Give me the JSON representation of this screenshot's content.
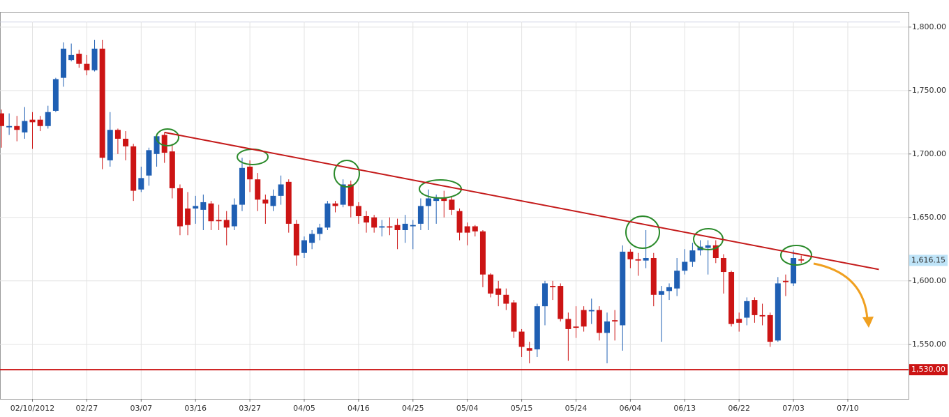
{
  "chart_data": {
    "type": "candlestick",
    "categories": [
      null,
      null,
      null,
      null,
      "02/10/2012",
      null,
      null,
      null,
      null,
      null,
      null,
      "02/27",
      null,
      null,
      null,
      null,
      null,
      null,
      "03/07",
      null,
      null,
      null,
      null,
      null,
      null,
      "03/16",
      null,
      null,
      null,
      null,
      null,
      null,
      "03/27",
      null,
      null,
      null,
      null,
      null,
      null,
      "04/05",
      null,
      null,
      null,
      null,
      null,
      null,
      "04/16",
      null,
      null,
      null,
      null,
      null,
      null,
      "04/25",
      null,
      null,
      null,
      null,
      null,
      null,
      "05/04",
      null,
      null,
      null,
      null,
      null,
      null,
      "05/15",
      null,
      null,
      null,
      null,
      null,
      null,
      "05/24",
      null,
      null,
      null,
      null,
      null,
      null,
      "06/04",
      null,
      null,
      null,
      null,
      null,
      null,
      "06/13",
      null,
      null,
      null,
      null,
      null,
      null,
      "06/22",
      null,
      null,
      null,
      null,
      null,
      null,
      "07/03",
      null,
      null,
      null,
      null,
      null,
      null,
      "07/10",
      null,
      null,
      null,
      null,
      null,
      null,
      null
    ],
    "open": [
      1732,
      1721,
      1722,
      1717,
      1727,
      1727,
      1722,
      1734,
      1760,
      1774,
      1779,
      1771,
      1766,
      1783,
      1695,
      1719,
      1712,
      1706,
      1672,
      1683,
      1700,
      1715,
      1702,
      1673,
      1657,
      1657,
      1656,
      1661,
      1648,
      1648,
      1643,
      1660,
      1690,
      1680,
      1664,
      1659,
      1667,
      1678,
      1645,
      1622,
      1630,
      1637,
      1642,
      1661,
      1660,
      1676,
      1659,
      1651,
      1650,
      1642,
      1643,
      1644,
      1640,
      1643,
      1645,
      1659,
      1663,
      1665,
      1664,
      1655,
      1643,
      1643,
      1639,
      1605,
      1594,
      1589,
      1583,
      1560,
      1547,
      1546,
      1580,
      1596,
      1596,
      1570,
      1564,
      1577,
      1576,
      1577,
      1559,
      1569,
      1565,
      1623,
      1617,
      1616,
      1618,
      1589,
      1592,
      1594,
      1608,
      1615,
      1624,
      1626,
      1628,
      1618,
      1607,
      1570,
      1571,
      1585,
      1573,
      1573,
      1553,
      1600,
      1598,
      1617,
      null,
      null,
      null,
      null,
      null,
      null,
      null,
      null,
      null,
      null,
      null,
      null,
      null
    ],
    "high": [
      1735,
      1732,
      1730,
      1737,
      1733,
      1730,
      1738,
      1760,
      1788,
      1787,
      1782,
      1778,
      1790,
      1790,
      1733,
      1720,
      1718,
      1708,
      1690,
      1705,
      1716,
      1717,
      1708,
      1676,
      1670,
      1667,
      1668,
      1663,
      1660,
      1655,
      1665,
      1697,
      1695,
      1685,
      1668,
      1672,
      1683,
      1680,
      1648,
      1635,
      1640,
      1645,
      1663,
      1663,
      1680,
      1679,
      1662,
      1655,
      1652,
      1648,
      1650,
      1649,
      1652,
      1648,
      1665,
      1672,
      1668,
      1671,
      1666,
      1657,
      1646,
      1644,
      1640,
      1606,
      1600,
      1594,
      1585,
      1562,
      1552,
      1582,
      1600,
      1600,
      1598,
      1575,
      1580,
      1580,
      1586,
      1580,
      1575,
      1577,
      1628,
      1625,
      1622,
      1640,
      1622,
      1596,
      1598,
      1618,
      1625,
      1630,
      1632,
      1632,
      1632,
      1621,
      1608,
      1575,
      1587,
      1587,
      1582,
      1575,
      1603,
      1605,
      1624,
      1620,
      null,
      null,
      null,
      null,
      null,
      null,
      null,
      null,
      null,
      null,
      null,
      null,
      null
    ],
    "low": [
      1705,
      1715,
      1710,
      1712,
      1704,
      1718,
      1720,
      1733,
      1753,
      1773,
      1768,
      1762,
      1765,
      1688,
      1690,
      1700,
      1695,
      1663,
      1670,
      1675,
      1690,
      1693,
      1665,
      1636,
      1636,
      1645,
      1640,
      1640,
      1640,
      1628,
      1640,
      1655,
      1670,
      1655,
      1645,
      1655,
      1660,
      1638,
      1612,
      1618,
      1625,
      1632,
      1640,
      1654,
      1658,
      1650,
      1645,
      1638,
      1638,
      1635,
      1636,
      1625,
      1630,
      1625,
      1640,
      1640,
      1645,
      1650,
      1652,
      1632,
      1628,
      1635,
      1595,
      1587,
      1580,
      1577,
      1555,
      1540,
      1535,
      1540,
      1565,
      1585,
      1568,
      1537,
      1555,
      1560,
      1566,
      1553,
      1535,
      1553,
      1545,
      1610,
      1604,
      1610,
      1580,
      1552,
      1585,
      1588,
      1605,
      1611,
      1620,
      1605,
      1614,
      1590,
      1564,
      1560,
      1565,
      1567,
      1565,
      1548,
      1552,
      1588,
      1596,
      1614,
      null,
      null,
      null,
      null,
      null,
      null,
      null,
      null,
      null,
      null,
      null,
      null,
      null
    ],
    "close": [
      1722,
      1722,
      1719,
      1726,
      1725,
      1722,
      1733,
      1759,
      1783,
      1778,
      1771,
      1766,
      1783,
      1697,
      1719,
      1712,
      1706,
      1671,
      1681,
      1703,
      1714,
      1701,
      1673,
      1643,
      1644,
      1659,
      1662,
      1647,
      1647,
      1642,
      1660,
      1689,
      1680,
      1664,
      1661,
      1667,
      1676,
      1645,
      1620,
      1632,
      1637,
      1642,
      1661,
      1659,
      1676,
      1659,
      1651,
      1646,
      1642,
      1643,
      1642,
      1640,
      1645,
      1644,
      1659,
      1665,
      1665,
      1663,
      1656,
      1638,
      1638,
      1639,
      1605,
      1590,
      1589,
      1582,
      1560,
      1548,
      1545,
      1580,
      1598,
      1595,
      1570,
      1562,
      1563,
      1564,
      1577,
      1559,
      1568,
      1568,
      1623,
      1617,
      1616,
      1618,
      1589,
      1592,
      1595,
      1608,
      1615,
      1624,
      1627,
      1628,
      1618,
      1607,
      1566,
      1567,
      1584,
      1573,
      1572,
      1552,
      1598,
      1599,
      1618,
      1616,
      null,
      null,
      null,
      null,
      null,
      null,
      null,
      null,
      null,
      null,
      null,
      null,
      null
    ],
    "up_color": "#1f5fb3",
    "down_color": "#cc1414",
    "ylim": [
      1507,
      1812
    ],
    "yticks": [
      {
        "value": 1550,
        "label": "1,550.00"
      },
      {
        "value": 1600,
        "label": "1,600.00"
      },
      {
        "value": 1650,
        "label": "1,650.00"
      },
      {
        "value": 1700,
        "label": "1,700.00"
      },
      {
        "value": 1750,
        "label": "1,750.00"
      },
      {
        "value": 1800,
        "label": "1,800.00"
      }
    ],
    "grid": true,
    "last_price": {
      "value": 1616.15,
      "label": "1,616.15"
    },
    "support": {
      "value": 1530,
      "label": "1,530.00",
      "color": "#cc1414"
    },
    "trend_line": {
      "x": [
        21,
        113
      ],
      "y": [
        1717,
        1609
      ],
      "color": "#c41a1a"
    }
  }
}
